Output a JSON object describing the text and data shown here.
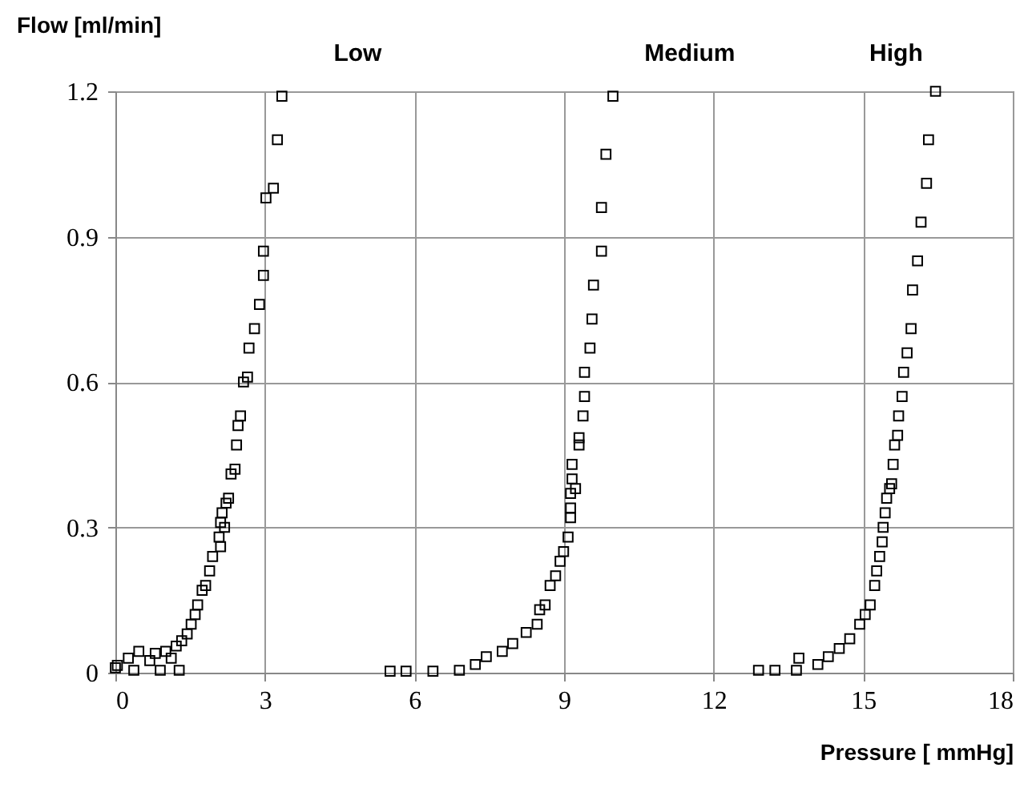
{
  "chart_data": {
    "type": "scatter",
    "xlabel": "Pressure [ mmHg]",
    "ylabel": "Flow [ml/min]",
    "annotations": [
      "Low",
      "Medium",
      "High"
    ],
    "xlim": [
      0,
      18
    ],
    "ylim": [
      0,
      1.2
    ],
    "xticks": [
      0,
      3,
      6,
      9,
      12,
      15,
      18
    ],
    "yticks": [
      0,
      0.3,
      0.6,
      0.9,
      1.2
    ],
    "grid": true,
    "marker": "square",
    "series": [
      {
        "color": "#000000",
        "x": [
          0.0,
          0.04,
          0.26,
          0.37,
          0.47,
          0.69,
          0.8,
          0.9,
          1.01,
          1.12,
          1.22,
          1.28,
          1.33,
          1.44,
          1.52,
          1.6,
          1.65,
          1.74,
          1.81,
          1.89,
          1.95,
          2.11,
          2.08,
          2.19,
          2.11,
          2.14,
          2.22,
          2.27,
          2.32,
          2.4,
          2.43,
          2.46,
          2.51,
          2.57,
          2.65,
          2.68,
          2.79,
          2.89,
          2.97,
          2.97,
          3.02,
          3.17,
          3.25,
          3.34,
          5.51,
          5.83,
          6.37,
          6.9,
          7.22,
          7.44,
          7.76,
          7.97,
          8.24,
          8.46,
          8.51,
          8.62,
          8.72,
          8.83,
          8.92,
          8.99,
          9.08,
          9.13,
          9.13,
          9.13,
          9.23,
          9.16,
          9.16,
          9.3,
          9.3,
          9.38,
          9.41,
          9.41,
          9.52,
          9.56,
          9.59,
          9.75,
          9.75,
          9.84,
          9.98,
          12.9,
          13.23,
          13.66,
          13.71,
          14.09,
          14.3,
          14.52,
          14.73,
          14.93,
          15.04,
          15.14,
          15.23,
          15.27,
          15.33,
          15.38,
          15.4,
          15.44,
          15.47,
          15.53,
          15.57,
          15.6,
          15.63,
          15.69,
          15.71,
          15.78,
          15.81,
          15.88,
          15.96,
          15.99,
          16.09,
          16.16,
          16.27,
          16.31,
          16.45
        ],
        "values": [
          0.01,
          0.015,
          0.03,
          0.005,
          0.044,
          0.025,
          0.04,
          0.005,
          0.044,
          0.03,
          0.055,
          0.005,
          0.066,
          0.08,
          0.1,
          0.12,
          0.14,
          0.17,
          0.18,
          0.21,
          0.24,
          0.26,
          0.28,
          0.3,
          0.31,
          0.33,
          0.35,
          0.36,
          0.41,
          0.42,
          0.47,
          0.51,
          0.53,
          0.6,
          0.61,
          0.67,
          0.71,
          0.76,
          0.82,
          0.87,
          0.98,
          1.0,
          1.1,
          1.19,
          0.003,
          0.003,
          0.003,
          0.005,
          0.017,
          0.033,
          0.044,
          0.06,
          0.083,
          0.1,
          0.13,
          0.14,
          0.18,
          0.2,
          0.23,
          0.25,
          0.28,
          0.32,
          0.34,
          0.37,
          0.38,
          0.4,
          0.43,
          0.47,
          0.485,
          0.53,
          0.57,
          0.62,
          0.67,
          0.73,
          0.8,
          0.87,
          0.96,
          1.07,
          1.19,
          0.005,
          0.005,
          0.005,
          0.03,
          0.017,
          0.033,
          0.05,
          0.07,
          0.1,
          0.12,
          0.14,
          0.18,
          0.21,
          0.24,
          0.27,
          0.3,
          0.33,
          0.36,
          0.38,
          0.39,
          0.43,
          0.47,
          0.49,
          0.53,
          0.57,
          0.62,
          0.66,
          0.71,
          0.79,
          0.85,
          0.93,
          1.01,
          1.1,
          1.2
        ]
      }
    ]
  }
}
